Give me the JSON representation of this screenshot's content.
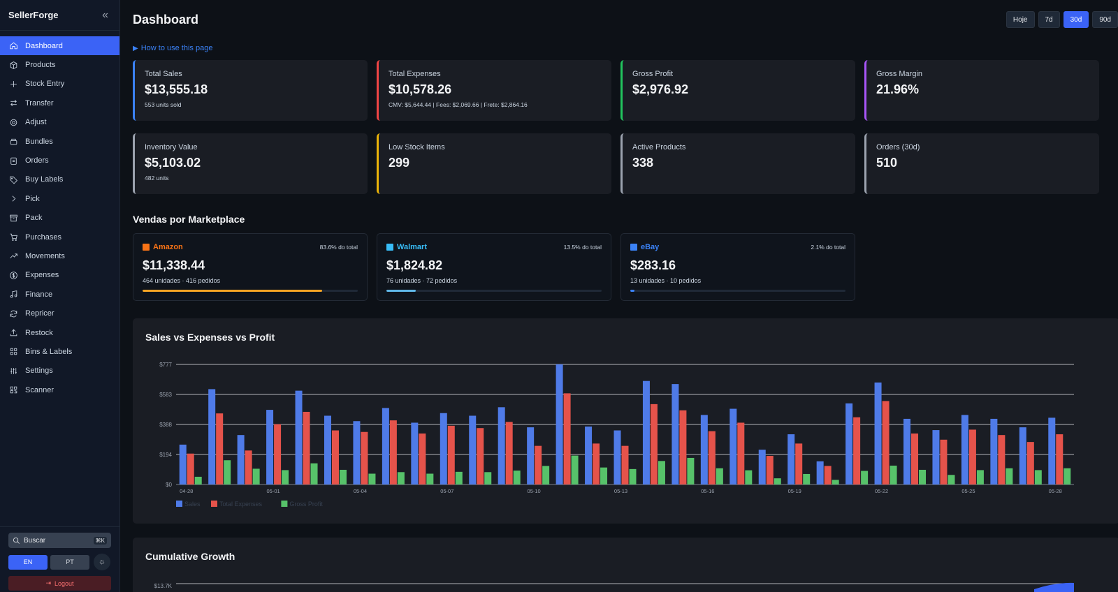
{
  "app": {
    "brand": "SellerForge"
  },
  "sidebar": {
    "items": [
      {
        "label": "Dashboard",
        "icon": "home-icon",
        "active": true
      },
      {
        "label": "Products",
        "icon": "box-icon"
      },
      {
        "label": "Stock Entry",
        "icon": "plus-icon"
      },
      {
        "label": "Transfer",
        "icon": "transfer-icon"
      },
      {
        "label": "Adjust",
        "icon": "gear-icon"
      },
      {
        "label": "Bundles",
        "icon": "bundle-icon"
      },
      {
        "label": "Orders",
        "icon": "clipboard-icon"
      },
      {
        "label": "Buy Labels",
        "icon": "tag-icon"
      },
      {
        "label": "Pick",
        "icon": "chevron-right-icon"
      },
      {
        "label": "Pack",
        "icon": "archive-icon"
      },
      {
        "label": "Purchases",
        "icon": "cart-icon"
      },
      {
        "label": "Movements",
        "icon": "trend-icon"
      },
      {
        "label": "Expenses",
        "icon": "dollar-icon"
      },
      {
        "label": "Finance",
        "icon": "music-icon"
      },
      {
        "label": "Repricer",
        "icon": "refresh-icon"
      },
      {
        "label": "Restock",
        "icon": "upload-icon"
      },
      {
        "label": "Bins & Labels",
        "icon": "grid-icon"
      },
      {
        "label": "Settings",
        "icon": "sliders-icon"
      },
      {
        "label": "Scanner",
        "icon": "qr-icon"
      }
    ],
    "search": {
      "label": "Buscar",
      "shortcut": "⌘K"
    },
    "lang": {
      "en": "EN",
      "pt": "PT"
    },
    "logout": "Logout"
  },
  "header": {
    "title": "Dashboard",
    "ranges": [
      {
        "label": "Hoje"
      },
      {
        "label": "7d"
      },
      {
        "label": "30d",
        "active": true
      },
      {
        "label": "90d"
      }
    ],
    "howto": "How to use this page"
  },
  "kpis": [
    {
      "label": "Total Sales",
      "value": "$13,555.18",
      "sub": "553 units sold",
      "color": "#3b82f6"
    },
    {
      "label": "Total Expenses",
      "value": "$10,578.26",
      "sub": "CMV: $5,644.44 | Fees: $2,069.66 | Frete: $2,864.16",
      "color": "#ef4444"
    },
    {
      "label": "Gross Profit",
      "value": "$2,976.92",
      "sub": "",
      "color": "#22c55e"
    },
    {
      "label": "Gross Margin",
      "value": "21.96%",
      "sub": "",
      "color": "#a855f7"
    },
    {
      "label": "Inventory Value",
      "value": "$5,103.02",
      "sub": "482 units",
      "color": "#9ca3af"
    },
    {
      "label": "Low Stock Items",
      "value": "299",
      "sub": "",
      "color": "#eab308"
    },
    {
      "label": "Active Products",
      "value": "338",
      "sub": "",
      "color": "#9ca3af"
    },
    {
      "label": "Orders (30d)",
      "value": "510",
      "sub": "",
      "color": "#9ca3af"
    }
  ],
  "marketplaces_title": "Vendas por Marketplace",
  "marketplaces": [
    {
      "name": "Amazon",
      "share": "83.6% do total",
      "value": "$11,338.44",
      "sub": "464 unidades · 416 pedidos",
      "color": "#f97316",
      "bar_color": "#f5a524",
      "fraction": 0.836
    },
    {
      "name": "Walmart",
      "share": "13.5% do total",
      "value": "$1,824.82",
      "sub": "76 unidades · 72 pedidos",
      "color": "#38bdf8",
      "bar_color": "#60b8e8",
      "fraction": 0.135
    },
    {
      "name": "eBay",
      "share": "2.1% do total",
      "value": "$283.16",
      "sub": "13 unidades · 10 pedidos",
      "color": "#3b82f6",
      "bar_color": "#3b82f6",
      "fraction": 0.021
    }
  ],
  "chart_title": "Sales vs Expenses vs Profit",
  "chart_data": {
    "type": "bar",
    "categories": [
      "04-28",
      "04-29",
      "04-30",
      "05-01",
      "05-02",
      "05-03",
      "05-04",
      "05-05",
      "05-06",
      "05-07",
      "05-08",
      "05-09",
      "05-10",
      "05-11",
      "05-12",
      "05-13",
      "05-14",
      "05-15",
      "05-16",
      "05-17",
      "05-18",
      "05-19",
      "05-20",
      "05-21",
      "05-22",
      "05-23",
      "05-24",
      "05-25",
      "05-26",
      "05-27",
      "05-28"
    ],
    "tick_labels": [
      "04-28",
      "05-01",
      "05-04",
      "05-07",
      "05-10",
      "05-13",
      "05-16",
      "05-19",
      "05-22",
      "05-25",
      "05-28"
    ],
    "yticks": [
      "$0",
      "$194",
      "$388",
      "$583",
      "$777"
    ],
    "ylim": [
      0,
      777
    ],
    "series": [
      {
        "name": "Sales",
        "color": "#4f7be8",
        "values": [
          258,
          617,
          320,
          483,
          607,
          445,
          410,
          495,
          400,
          462,
          445,
          500,
          370,
          777,
          375,
          350,
          670,
          650,
          450,
          490,
          225,
          325,
          150,
          525,
          660,
          425,
          352,
          450,
          425,
          370,
          432
        ]
      },
      {
        "name": "Total Expenses",
        "color": "#e5534b",
        "values": [
          200,
          460,
          220,
          390,
          470,
          350,
          340,
          415,
          330,
          380,
          365,
          405,
          250,
          590,
          265,
          250,
          520,
          480,
          345,
          400,
          185,
          265,
          120,
          435,
          540,
          330,
          290,
          355,
          320,
          275,
          325
        ]
      },
      {
        "name": "Gross Profit",
        "color": "#57c26a",
        "values": [
          50,
          157,
          102,
          93,
          137,
          95,
          70,
          80,
          70,
          82,
          80,
          90,
          120,
          187,
          110,
          100,
          152,
          172,
          105,
          92,
          40,
          68,
          30,
          88,
          122,
          95,
          62,
          93,
          105,
          93,
          105
        ]
      }
    ],
    "legend": "bottom-left"
  },
  "cumulative": {
    "title": "Cumulative Growth",
    "ytop": "$13.7K"
  }
}
